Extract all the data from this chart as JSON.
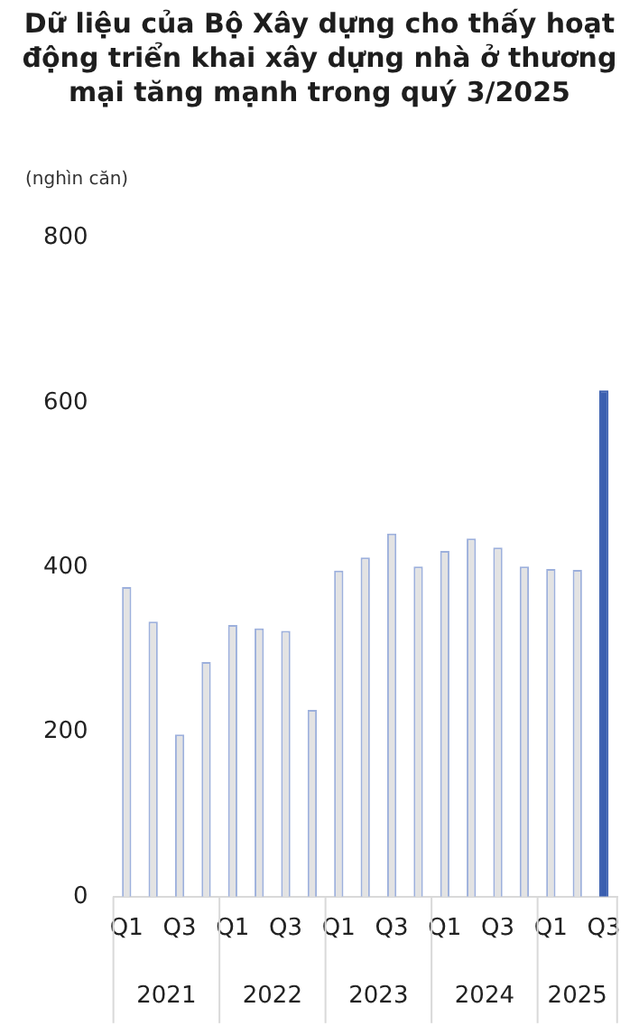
{
  "chart_data": {
    "type": "bar",
    "title": "Dữ liệu của Bộ Xây dựng cho thấy hoạt động triển khai xây dựng nhà ở thương mại tăng mạnh trong quý 3/2025",
    "ylabel": "(nghìn căn)",
    "categories": [
      "Q1",
      null,
      "Q3",
      null,
      "Q1",
      null,
      "Q3",
      null,
      "Q1",
      null,
      "Q3",
      null,
      "Q1",
      null,
      "Q3",
      null,
      "Q1",
      null,
      "Q3"
    ],
    "values": [
      376,
      334,
      197,
      285,
      330,
      326,
      323,
      227,
      396,
      412,
      441,
      401,
      420,
      435,
      424,
      401,
      398,
      397,
      615
    ],
    "colors": [
      "#e3e3e3",
      "#e3e3e3",
      "#e3e3e3",
      "#e3e3e3",
      "#e3e3e3",
      "#e3e3e3",
      "#e3e3e3",
      "#e3e3e3",
      "#e3e3e3",
      "#e3e3e3",
      "#e3e3e3",
      "#e3e3e3",
      "#e3e3e3",
      "#e3e3e3",
      "#e3e3e3",
      "#e3e3e3",
      "#e3e3e3",
      "#e3e3e3",
      "#3a5fb0"
    ],
    "ylim": [
      0,
      800
    ],
    "yticks": [
      0,
      200,
      400,
      600,
      800
    ],
    "grid": false,
    "annotations": [
      "2021",
      "2022",
      "2023",
      "2024",
      "2025"
    ]
  }
}
